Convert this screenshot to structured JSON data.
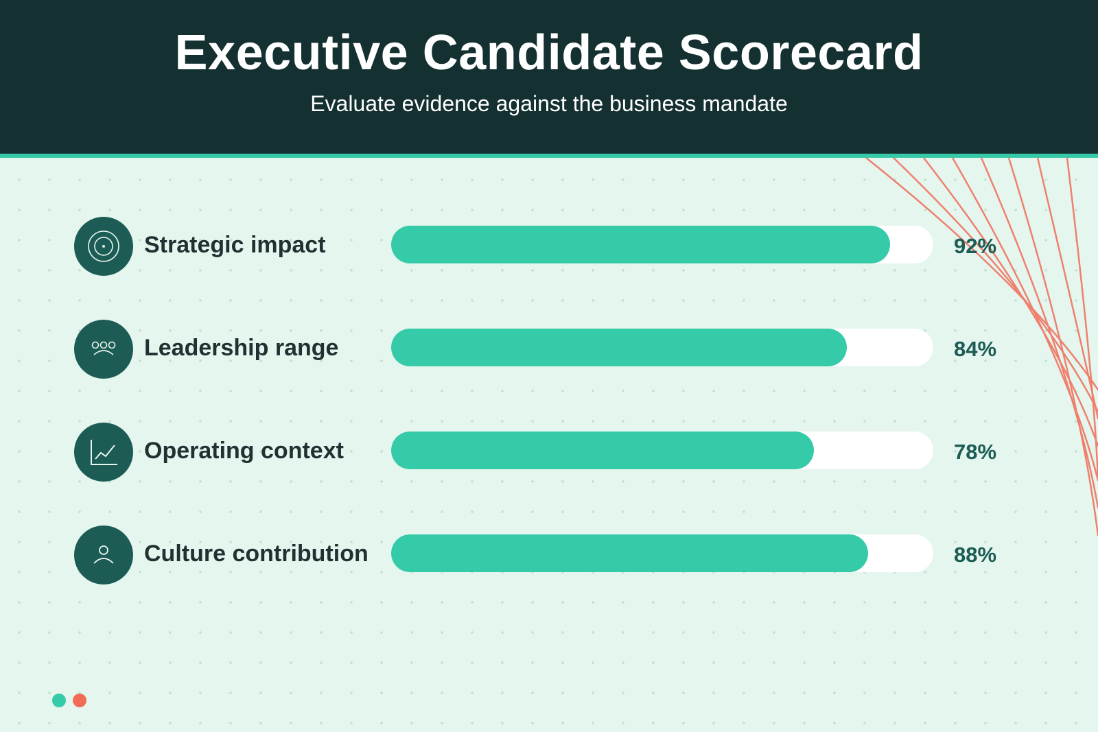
{
  "header": {
    "title": "Executive Candidate Scorecard",
    "subtitle": "Evaluate evidence against the business mandate"
  },
  "colors": {
    "header_bg": "#143030",
    "accent": "#35cba8",
    "icon_bg": "#1c5c54",
    "page_bg": "#e4f6ee",
    "deco_lines": "#f07a68",
    "dot_red": "#f26b57"
  },
  "chart_data": {
    "type": "bar",
    "orientation": "horizontal",
    "categories": [
      "Strategic impact",
      "Leadership range",
      "Operating context",
      "Culture contribution"
    ],
    "values": [
      92,
      84,
      78,
      88
    ],
    "value_labels": [
      "92%",
      "84%",
      "78%",
      "88%"
    ],
    "xlim": [
      0,
      100
    ],
    "icons": [
      "target-icon",
      "team-icon",
      "line-chart-icon",
      "person-icon"
    ]
  },
  "pagination": {
    "total": 2,
    "active": 0
  }
}
